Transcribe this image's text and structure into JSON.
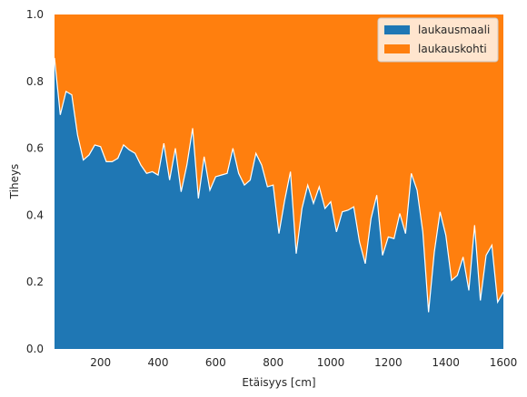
{
  "chart_data": {
    "type": "area",
    "stacked": true,
    "normalized": true,
    "xlabel": "Etäisyys [cm]",
    "ylabel": "Tiheys",
    "xlim": [
      40,
      1600
    ],
    "ylim": [
      0,
      1
    ],
    "xticks": [
      200,
      400,
      600,
      800,
      1000,
      1200,
      1400,
      1600
    ],
    "yticks": [
      0.0,
      0.2,
      0.4,
      0.6,
      0.8,
      1.0
    ],
    "grid": false,
    "legend_position": "top-right",
    "series": [
      {
        "name": "laukausmaali",
        "color": "#1f77b4"
      },
      {
        "name": "laukauskohti",
        "color": "#ff7f0e"
      }
    ],
    "x": [
      40,
      60,
      80,
      100,
      120,
      140,
      160,
      180,
      200,
      220,
      240,
      260,
      280,
      300,
      320,
      340,
      360,
      380,
      400,
      420,
      440,
      460,
      480,
      500,
      520,
      540,
      560,
      580,
      600,
      620,
      640,
      660,
      680,
      700,
      720,
      740,
      760,
      780,
      800,
      820,
      840,
      860,
      880,
      900,
      920,
      940,
      960,
      980,
      1000,
      1020,
      1040,
      1060,
      1080,
      1100,
      1120,
      1140,
      1160,
      1180,
      1200,
      1220,
      1240,
      1260,
      1280,
      1300,
      1320,
      1340,
      1360,
      1380,
      1400,
      1420,
      1440,
      1460,
      1480,
      1500,
      1520,
      1540,
      1560,
      1580,
      1600
    ],
    "laukausmaali": [
      0.87,
      0.7,
      0.77,
      0.76,
      0.64,
      0.565,
      0.58,
      0.61,
      0.605,
      0.56,
      0.56,
      0.57,
      0.61,
      0.595,
      0.585,
      0.55,
      0.525,
      0.53,
      0.52,
      0.615,
      0.505,
      0.6,
      0.47,
      0.55,
      0.66,
      0.45,
      0.575,
      0.475,
      0.515,
      0.52,
      0.525,
      0.6,
      0.525,
      0.49,
      0.505,
      0.585,
      0.55,
      0.485,
      0.49,
      0.345,
      0.445,
      0.53,
      0.285,
      0.42,
      0.49,
      0.435,
      0.485,
      0.42,
      0.44,
      0.35,
      0.41,
      0.415,
      0.425,
      0.32,
      0.255,
      0.39,
      0.46,
      0.28,
      0.335,
      0.33,
      0.405,
      0.345,
      0.525,
      0.475,
      0.35,
      0.11,
      0.29,
      0.41,
      0.34,
      0.205,
      0.22,
      0.275,
      0.175,
      0.37,
      0.145,
      0.28,
      0.31,
      0.14,
      0.17
    ]
  }
}
